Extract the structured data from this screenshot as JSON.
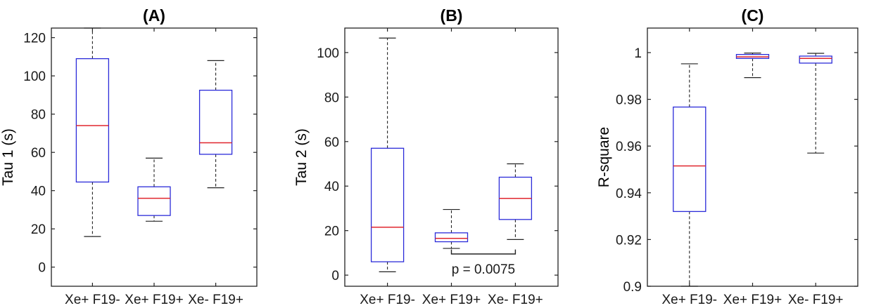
{
  "chart_data": [
    {
      "type": "box",
      "title": "(A)",
      "ylabel": "Tau 1 (s)",
      "categories": [
        "Xe+ F19-",
        "Xe+ F19+",
        "Xe- F19+"
      ],
      "ylim": [
        -10,
        125
      ],
      "yticks": [
        0,
        20,
        40,
        60,
        80,
        100,
        120
      ],
      "grid": false,
      "boxes": [
        {
          "whisker_low": 16,
          "q1": 44.5,
          "median": 74,
          "q3": 109,
          "whisker_high": 125
        },
        {
          "whisker_low": 24,
          "q1": 27,
          "median": 36,
          "q3": 42,
          "whisker_high": 57
        },
        {
          "whisker_low": 41.5,
          "q1": 59,
          "median": 65,
          "q3": 92.5,
          "whisker_high": 108
        }
      ]
    },
    {
      "type": "box",
      "title": "(B)",
      "ylabel": "Tau 2 (s)",
      "categories": [
        "Xe+ F19-",
        "Xe+ F19+",
        "Xe- F19+"
      ],
      "ylim": [
        -5,
        111
      ],
      "yticks": [
        0,
        20,
        40,
        60,
        80,
        100
      ],
      "grid": false,
      "boxes": [
        {
          "whisker_low": 1.5,
          "q1": 6,
          "median": 21.5,
          "q3": 57,
          "whisker_high": 106.5
        },
        {
          "whisker_low": 12,
          "q1": 15,
          "median": 16.5,
          "q3": 19,
          "whisker_high": 29.5
        },
        {
          "whisker_low": 16,
          "q1": 25,
          "median": 34.5,
          "q3": 44,
          "whisker_high": 50
        }
      ],
      "annotation": {
        "text": "p = 0.0075",
        "from_category": 1,
        "to_category": 2,
        "y": 9.5,
        "tick_top": 11.5
      }
    },
    {
      "type": "box",
      "title": "(C)",
      "ylabel": "R-square",
      "categories": [
        "Xe+ F19-",
        "Xe+ F19+",
        "Xe- F19+"
      ],
      "ylim": [
        0.9,
        1.0105
      ],
      "yticks": [
        0.9,
        0.92,
        0.94,
        0.96,
        0.98,
        1
      ],
      "ytick_labels": [
        "0.9",
        "0.92",
        "0.94",
        "0.96",
        "0.98",
        "1"
      ],
      "grid": false,
      "boxes": [
        {
          "whisker_low": 0.9,
          "q1": 0.932,
          "median": 0.9515,
          "q3": 0.9767,
          "whisker_high": 0.9952
        },
        {
          "whisker_low": 0.9893,
          "q1": 0.9975,
          "median": 0.9982,
          "q3": 0.9992,
          "whisker_high": 0.9998
        },
        {
          "whisker_low": 0.957,
          "q1": 0.9955,
          "median": 0.9975,
          "q3": 0.9985,
          "whisker_high": 0.9997
        }
      ]
    }
  ],
  "colors": {
    "box": "#2b2bd9",
    "median": "#e0262e",
    "whisker": "#222222",
    "axis": "#222222"
  }
}
